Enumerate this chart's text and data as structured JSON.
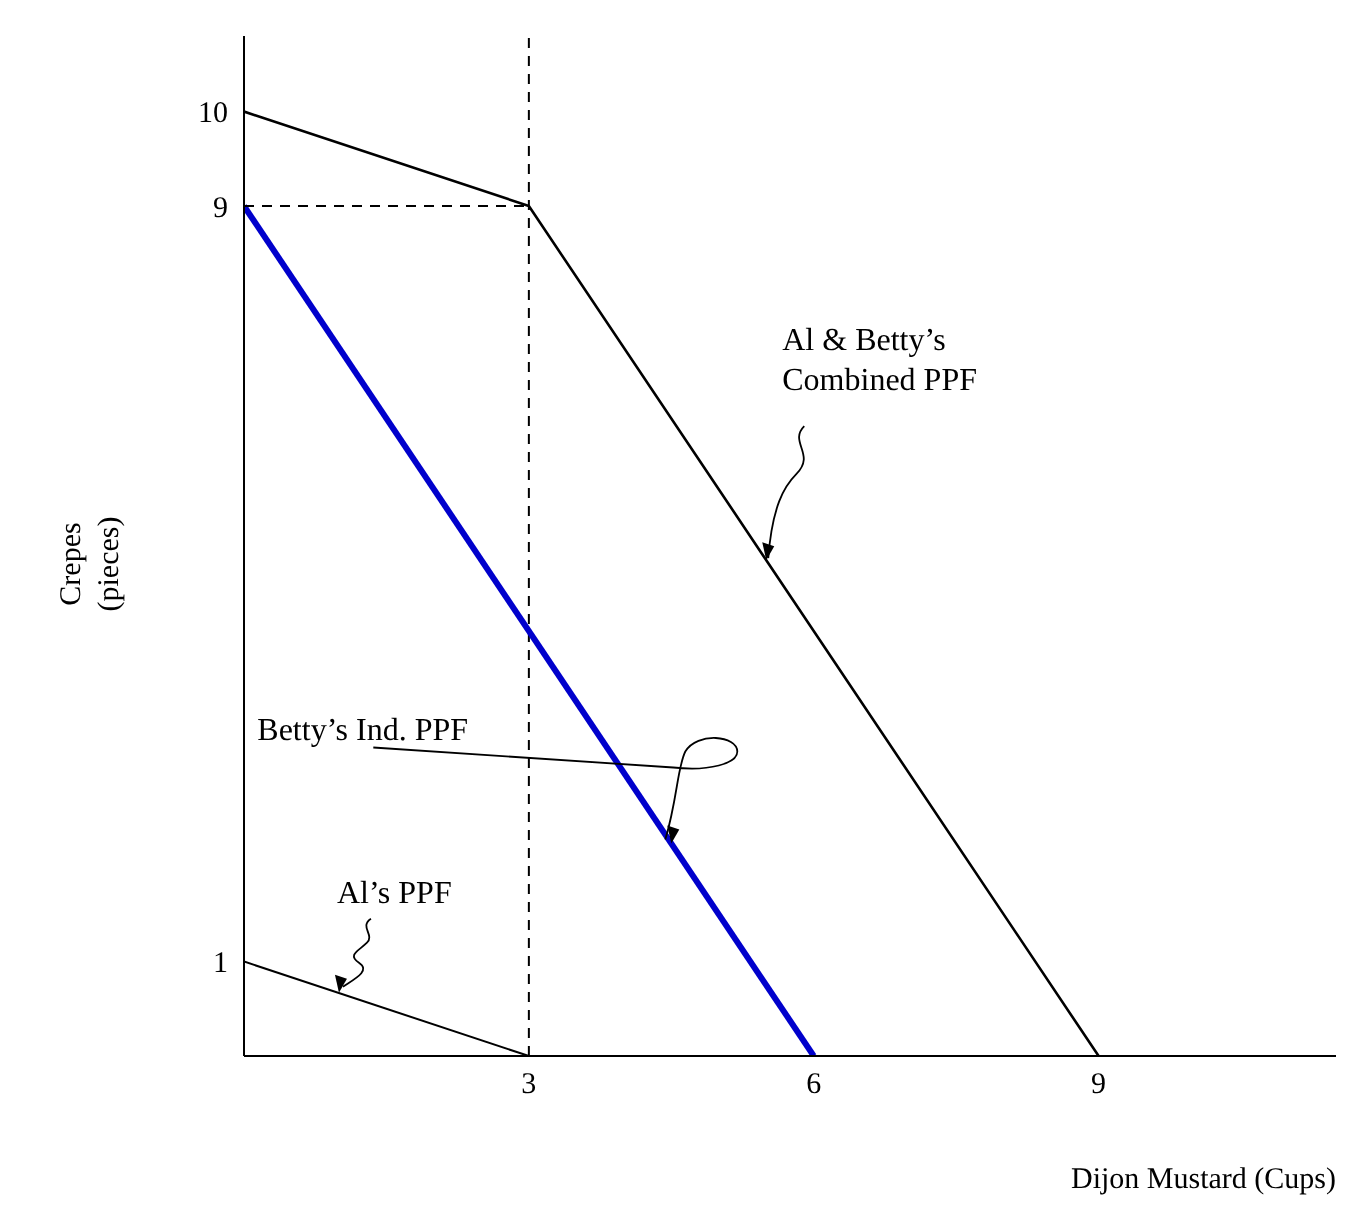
{
  "chart_data": {
    "type": "line",
    "xlabel": "Dijon Mustard (Cups)",
    "ylabel": "Crepes\n(pieces)",
    "xlim": [
      0,
      11.5
    ],
    "ylim": [
      0,
      10.8
    ],
    "xticks": [
      3,
      6,
      9
    ],
    "yticks": [
      1,
      9,
      10
    ],
    "grid": false,
    "marker": "none",
    "line_style": "solid",
    "series": [
      {
        "color": "#000000",
        "x": [
          0,
          3,
          9
        ],
        "values": [
          10,
          9,
          0
        ]
      },
      {
        "color": "#0000cc",
        "x": [
          0,
          6
        ],
        "values": [
          9,
          0
        ]
      },
      {
        "color": "#000000",
        "x": [
          0,
          3
        ],
        "values": [
          1,
          0
        ]
      },
      {
        "color": "#000000",
        "x": [
          0,
          3
        ],
        "values": [
          9,
          9
        ],
        "line_style": "dashed"
      }
    ],
    "ref_lines": [
      {
        "axis": "x",
        "value": 3,
        "line_style": "dashed",
        "color": "#000000"
      }
    ],
    "annotations": [
      {
        "text": "Al & Betty’s\nCombined PPF",
        "x": 5.5,
        "y": 5.25
      },
      {
        "text": "Betty’s Ind. PPF",
        "x": 4.5,
        "y": 2.25
      },
      {
        "text": "Al’s PPF",
        "x": 1,
        "y": 0.67
      }
    ]
  }
}
